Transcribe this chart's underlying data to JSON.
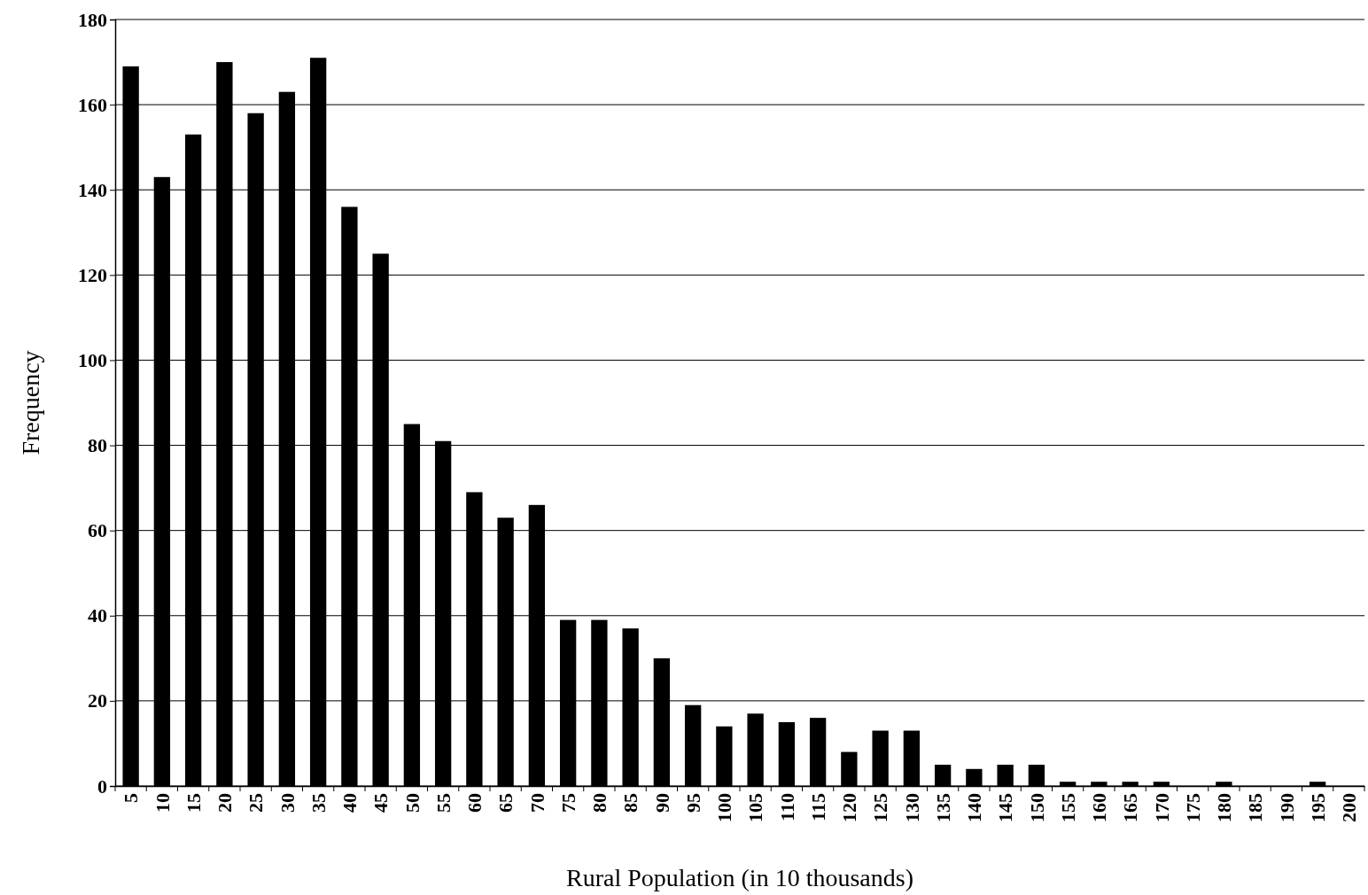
{
  "chart_data": {
    "type": "bar",
    "xlabel": "Rural Population (in 10 thousands)",
    "ylabel": "Frequency",
    "categories": [
      "5",
      "10",
      "15",
      "20",
      "25",
      "30",
      "35",
      "40",
      "45",
      "50",
      "55",
      "60",
      "65",
      "70",
      "75",
      "80",
      "85",
      "90",
      "95",
      "100",
      "105",
      "110",
      "115",
      "120",
      "125",
      "130",
      "135",
      "140",
      "145",
      "150",
      "155",
      "160",
      "165",
      "170",
      "175",
      "180",
      "185",
      "190",
      "195",
      "200"
    ],
    "values": [
      169,
      143,
      153,
      170,
      158,
      163,
      171,
      136,
      125,
      85,
      81,
      69,
      63,
      66,
      39,
      39,
      37,
      30,
      19,
      14,
      17,
      15,
      16,
      8,
      13,
      13,
      5,
      4,
      5,
      5,
      1,
      1,
      1,
      1,
      0,
      1,
      0,
      0,
      1,
      0
    ],
    "color": "#000000",
    "ylim": [
      0,
      180
    ],
    "yticks": [
      0,
      20,
      40,
      60,
      80,
      100,
      120,
      140,
      160,
      180
    ],
    "grid": "y"
  }
}
